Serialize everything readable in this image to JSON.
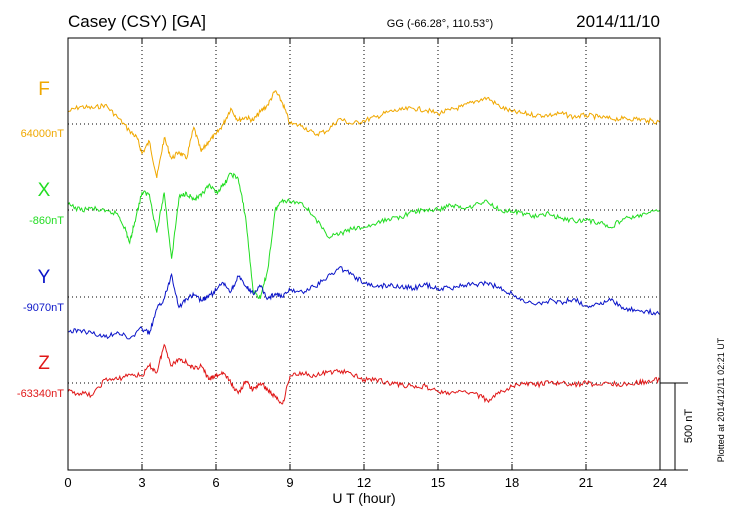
{
  "chart_data": {
    "type": "line",
    "title": "Casey (CSY)  [GA]",
    "subtitle": "GG (-66.28°, 110.53°)",
    "date": "2014/11/10",
    "xlabel": "U T (hour)",
    "xlim": [
      0,
      24
    ],
    "x_ticks": [
      "0",
      "3",
      "6",
      "9",
      "12",
      "15",
      "18",
      "21",
      "24"
    ],
    "scale_label": "500 nT",
    "scale_nT": 500,
    "footer": "Plotted at 2014/12/11 02:21  UT",
    "grid": true,
    "series": [
      {
        "name": "F",
        "baseline_label": "64000nT",
        "color": "#f0a800",
        "baseline_nT": 64000,
        "x": [
          0,
          0.5,
          1,
          1.5,
          2,
          2.5,
          2.8,
          3,
          3.3,
          3.6,
          3.9,
          4.2,
          4.5,
          4.8,
          5.1,
          5.4,
          5.7,
          6,
          6.3,
          6.6,
          6.9,
          7.2,
          7.5,
          7.8,
          8.1,
          8.4,
          8.7,
          9,
          9.5,
          10,
          10.5,
          11,
          11.5,
          12,
          12.5,
          13,
          13.5,
          14,
          14.5,
          15,
          15.5,
          16,
          16.5,
          17,
          17.5,
          18,
          18.5,
          19,
          19.5,
          20,
          20.5,
          21,
          21.5,
          22,
          22.5,
          23,
          23.5,
          24
        ],
        "y": [
          64030,
          64060,
          64050,
          64070,
          64000,
          63920,
          63880,
          63790,
          63860,
          63650,
          63880,
          63760,
          63800,
          63760,
          63940,
          63800,
          63860,
          63900,
          63960,
          64050,
          63980,
          64000,
          63980,
          64030,
          64070,
          64150,
          64080,
          63960,
          63950,
          63900,
          63920,
          63990,
          63960,
          63980,
          64000,
          64030,
          64040,
          64050,
          64040,
          64020,
          64040,
          64060,
          64090,
          64110,
          64060,
          64030,
          64020,
          64010,
          64010,
          64020,
          64000,
          64010,
          64000,
          63990,
          63990,
          63990,
          63980,
          63970
        ]
      },
      {
        "name": "X",
        "baseline_label": "-860nT",
        "color": "#22dd22",
        "baseline_nT": -860,
        "x": [
          0,
          0.5,
          1,
          1.5,
          2,
          2.3,
          2.5,
          2.7,
          3,
          3.3,
          3.6,
          3.9,
          4.2,
          4.5,
          4.8,
          5.1,
          5.4,
          5.7,
          6,
          6.3,
          6.6,
          6.9,
          7.2,
          7.5,
          7.8,
          8.1,
          8.4,
          8.7,
          9,
          9.5,
          10,
          10.5,
          11,
          11.5,
          12,
          12.5,
          13,
          13.5,
          14,
          14.5,
          15,
          15.5,
          16,
          16.5,
          17,
          17.5,
          18,
          18.5,
          19,
          19.5,
          20,
          20.5,
          21,
          21.5,
          22,
          22.5,
          23,
          23.5,
          24
        ],
        "y": [
          -830,
          -860,
          -850,
          -870,
          -880,
          -960,
          -1050,
          -930,
          -760,
          -770,
          -990,
          -760,
          -1140,
          -790,
          -760,
          -800,
          -780,
          -720,
          -760,
          -720,
          -650,
          -680,
          -900,
          -1320,
          -1370,
          -1200,
          -860,
          -800,
          -810,
          -820,
          -900,
          -1010,
          -1000,
          -970,
          -960,
          -940,
          -910,
          -900,
          -870,
          -860,
          -860,
          -830,
          -850,
          -830,
          -810,
          -860,
          -870,
          -880,
          -900,
          -880,
          -910,
          -920,
          -920,
          -930,
          -960,
          -910,
          -900,
          -880,
          -860
        ]
      },
      {
        "name": "Y",
        "baseline_label": "-9070nT",
        "color": "#0a14c8",
        "baseline_nT": -9070,
        "x": [
          0,
          0.5,
          1,
          1.5,
          2,
          2.5,
          3,
          3.3,
          3.6,
          3.9,
          4.2,
          4.5,
          4.8,
          5.1,
          5.4,
          5.7,
          6,
          6.3,
          6.6,
          6.9,
          7.2,
          7.5,
          7.8,
          8.1,
          8.4,
          8.7,
          9,
          9.5,
          10,
          10.5,
          11,
          11.5,
          12,
          12.5,
          13,
          13.5,
          14,
          14.5,
          15,
          15.5,
          16,
          16.5,
          17,
          17.5,
          18,
          18.5,
          19,
          19.5,
          20,
          20.5,
          21,
          21.5,
          22,
          22.5,
          23,
          23.5,
          24
        ],
        "y": [
          -9270,
          -9260,
          -9280,
          -9300,
          -9270,
          -9310,
          -9250,
          -9280,
          -9140,
          -9080,
          -8940,
          -9130,
          -9080,
          -9060,
          -9090,
          -9070,
          -9030,
          -8990,
          -9040,
          -8950,
          -9010,
          -9050,
          -9010,
          -9080,
          -9050,
          -9070,
          -9030,
          -9040,
          -9010,
          -8960,
          -8900,
          -8940,
          -8990,
          -9010,
          -9000,
          -9010,
          -9020,
          -9000,
          -9020,
          -9020,
          -9000,
          -9000,
          -8990,
          -9020,
          -9050,
          -9100,
          -9110,
          -9090,
          -9100,
          -9080,
          -9120,
          -9110,
          -9090,
          -9130,
          -9150,
          -9150,
          -9170
        ]
      },
      {
        "name": "Z",
        "baseline_label": "-63340nT",
        "color": "#e01818",
        "baseline_nT": -63340,
        "x": [
          0,
          0.5,
          1,
          1.5,
          2,
          2.5,
          3,
          3.3,
          3.6,
          3.9,
          4.2,
          4.5,
          4.8,
          5.1,
          5.4,
          5.7,
          6,
          6.3,
          6.6,
          6.9,
          7.2,
          7.5,
          7.8,
          8.1,
          8.4,
          8.7,
          9,
          9.5,
          10,
          10.5,
          11,
          11.5,
          12,
          12.5,
          13,
          13.5,
          14,
          14.5,
          15,
          15.5,
          16,
          16.5,
          17,
          17.5,
          18,
          18.5,
          19,
          19.5,
          20,
          20.5,
          21,
          21.5,
          22,
          22.5,
          23,
          23.5,
          24
        ],
        "y": [
          -63390,
          -63400,
          -63410,
          -63320,
          -63320,
          -63290,
          -63300,
          -63240,
          -63280,
          -63120,
          -63240,
          -63200,
          -63220,
          -63260,
          -63240,
          -63320,
          -63300,
          -63280,
          -63340,
          -63400,
          -63330,
          -63380,
          -63340,
          -63380,
          -63420,
          -63460,
          -63300,
          -63280,
          -63300,
          -63280,
          -63270,
          -63290,
          -63320,
          -63320,
          -63340,
          -63350,
          -63360,
          -63360,
          -63390,
          -63400,
          -63390,
          -63400,
          -63440,
          -63400,
          -63360,
          -63340,
          -63350,
          -63340,
          -63340,
          -63350,
          -63340,
          -63350,
          -63340,
          -63350,
          -63340,
          -63330,
          -63320
        ]
      }
    ]
  }
}
